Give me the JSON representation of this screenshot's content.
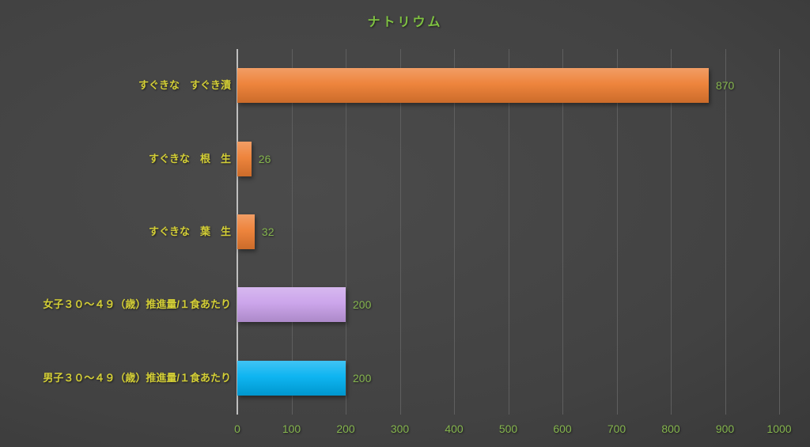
{
  "chart_data": {
    "type": "bar",
    "orientation": "horizontal",
    "title": "ナトリウム",
    "categories": [
      "すぐきな　すぐき漬",
      "すぐきな　根　生",
      "すぐきな　葉　生",
      "女子３０～４９（歳）推進量/１食あたり",
      "男子３０～４９（歳）推進量/１食あたり"
    ],
    "values": [
      870,
      26,
      32,
      200,
      200
    ],
    "value_labels": [
      "870",
      "26",
      "32",
      "200",
      "200"
    ],
    "bar_colors": [
      "#ed7d31",
      "#ed7d31",
      "#ed7d31",
      "#c9a0ea",
      "#00b0f0"
    ],
    "xlim": [
      0,
      1000
    ],
    "tick_step": 100,
    "tick_labels": [
      "0",
      "100",
      "200",
      "300",
      "400",
      "500",
      "600",
      "700",
      "800",
      "900",
      "1000"
    ],
    "grid": true,
    "legend": null,
    "colors": {
      "title": "#7fc241",
      "category_label": "#d4cf36",
      "value_label": "#85b54e",
      "tick_label": "#85b54e",
      "gridline": "#5f5f5f",
      "axis_line": "#bfbfbf"
    }
  }
}
